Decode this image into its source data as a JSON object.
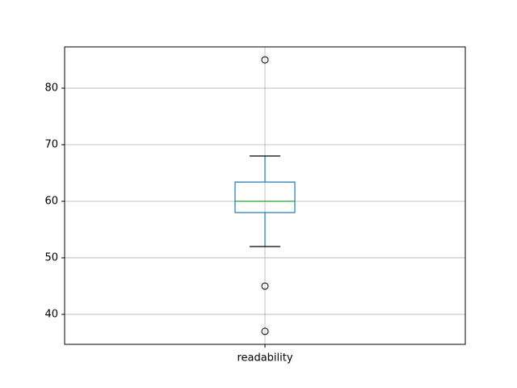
{
  "chart_data": {
    "type": "box",
    "categories": [
      "readability"
    ],
    "boxes": [
      {
        "whisker_low": 52,
        "q1": 58,
        "median": 60,
        "q3": 63.4,
        "whisker_high": 68,
        "outliers": [
          85,
          45,
          37
        ]
      }
    ],
    "box_color": "#1f77b4",
    "median_color": "#2ca02c",
    "cap_color": "#000000",
    "ylim": [
      34.7,
      87.3
    ],
    "yticks": [
      40,
      50,
      60,
      70,
      80
    ],
    "grid": true
  }
}
